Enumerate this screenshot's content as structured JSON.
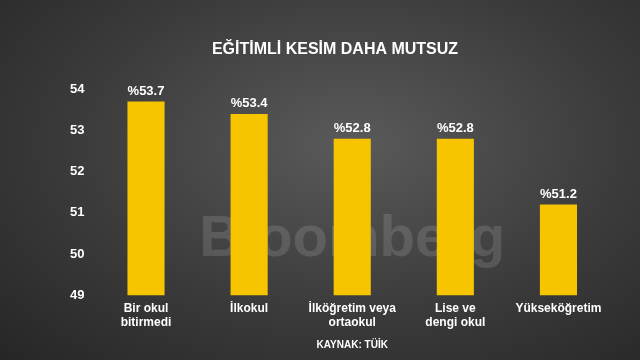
{
  "chart_data": {
    "type": "bar",
    "title": "EĞİTİMLİ KESİM DAHA MUTSUZ",
    "categories": [
      [
        "Bir okul",
        "bitirmedi"
      ],
      "İlkokul",
      [
        "İlköğretim veya",
        "ortaokul"
      ],
      [
        "Lise ve",
        "dengi okul"
      ],
      "Yükseköğretim"
    ],
    "values": [
      53.7,
      53.4,
      52.8,
      52.8,
      51.2
    ],
    "value_labels": [
      "%53.7",
      "%53.4",
      "%52.8",
      "%52.8",
      "%51.2"
    ],
    "data_labels": true,
    "color": "#f7c500",
    "ylim": [
      49,
      54
    ],
    "yticks": [
      49,
      50,
      51,
      52,
      53,
      54
    ],
    "grid": false,
    "source": "KAYNAK: TÜİK",
    "watermark": "Bloomberg"
  }
}
